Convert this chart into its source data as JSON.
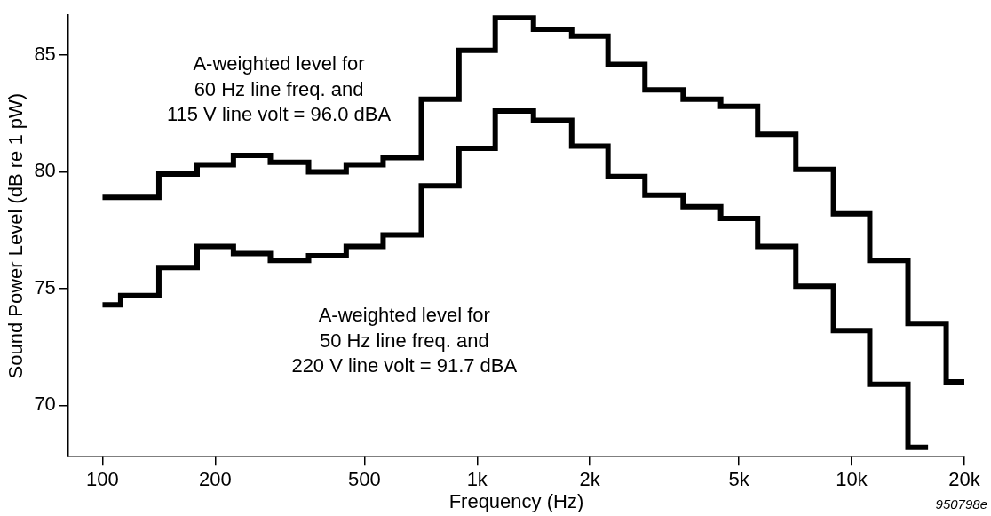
{
  "chart_data": {
    "type": "step",
    "xlabel": "Frequency (Hz)",
    "ylabel": "Sound Power Level (dB re 1 pW)",
    "x": [
      100,
      125,
      160,
      200,
      250,
      315,
      400,
      500,
      630,
      800,
      1000,
      1250,
      1600,
      2000,
      2500,
      3150,
      4000,
      5000,
      6300,
      8000,
      10000,
      12500,
      16000,
      20000
    ],
    "series": [
      {
        "color": "#000000",
        "values": [
          78.9,
          78.9,
          79.9,
          80.3,
          80.7,
          80.4,
          80.0,
          80.3,
          80.6,
          83.1,
          85.2,
          86.6,
          86.1,
          85.8,
          84.6,
          83.5,
          83.1,
          82.8,
          81.6,
          80.1,
          78.2,
          76.2,
          73.5,
          71.0
        ]
      },
      {
        "color": "#000000",
        "values": [
          74.3,
          74.7,
          75.9,
          76.8,
          76.5,
          76.2,
          76.4,
          76.8,
          77.3,
          79.4,
          81.0,
          82.6,
          82.2,
          81.1,
          79.8,
          79.0,
          78.5,
          78.0,
          76.8,
          75.1,
          73.2,
          70.9,
          68.2,
          null
        ]
      }
    ],
    "log": "x",
    "xlim": [
      81,
      20000
    ],
    "xticks": [
      100,
      200,
      500,
      {
        "value": 1000,
        "label": "1k"
      },
      {
        "value": 2000,
        "label": "2k"
      },
      {
        "value": 5000,
        "label": "5k"
      },
      {
        "value": 10000,
        "label": "10k"
      },
      {
        "value": 20000,
        "label": "20k"
      }
    ],
    "ylim": [
      67.8,
      86.7
    ],
    "yticks": [
      70,
      75,
      80,
      85
    ],
    "grid": false,
    "legend": false,
    "line_style": "solid",
    "marker": "none",
    "annotations": [
      "A-weighted level for\n60 Hz line freq. and\n115 V line volt = 96.0 dBA",
      "A-weighted level for\n50 Hz line freq. and\n220 V line volt = 91.7 dBA",
      "950798e"
    ]
  }
}
